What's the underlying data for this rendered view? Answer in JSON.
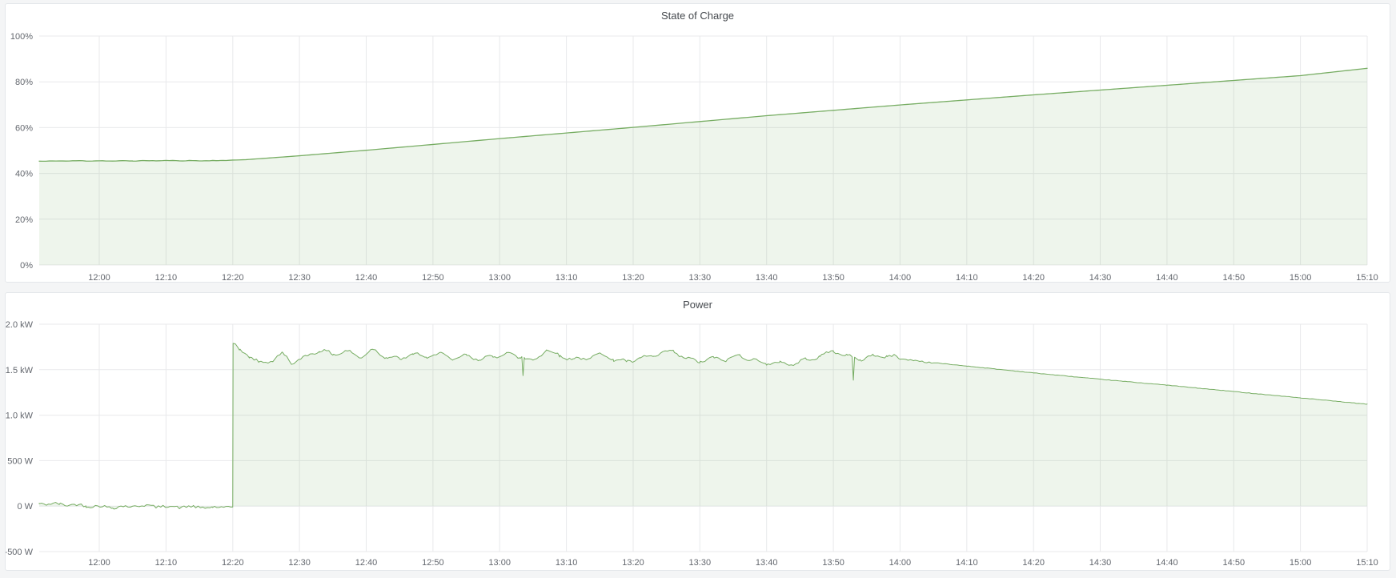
{
  "page": {
    "background": "#f4f5f6",
    "panel_background": "#ffffff"
  },
  "colors": {
    "accent_green_line": "#77ad63",
    "area_fill": "rgba(126,178,109,0.13)",
    "grid": "#e8e9eb",
    "tick_text": "#63676e",
    "title_text": "#45494e",
    "panel_border": "#e4e7ea"
  },
  "panels": [
    {
      "title": "State of Charge"
    },
    {
      "title": "Power"
    }
  ],
  "chart_data": [
    {
      "type": "area",
      "title": "State of Charge",
      "xlabel": "",
      "ylabel": "",
      "unit": "%",
      "legend": "none",
      "grid": true,
      "seed": 11,
      "step": 0.5,
      "line_width": 1.3,
      "line_color": "#77ad63",
      "fill_color": "rgba(126,178,109,0.13)",
      "x_range": [
        "11:51",
        "15:10"
      ],
      "ylim": [
        0,
        100
      ],
      "y_ticks": [
        {
          "v": 0,
          "label": "0%"
        },
        {
          "v": 20,
          "label": "20%"
        },
        {
          "v": 40,
          "label": "40%"
        },
        {
          "v": 60,
          "label": "60%"
        },
        {
          "v": 80,
          "label": "80%"
        },
        {
          "v": 100,
          "label": "100%"
        }
      ],
      "x_ticks": [
        "12:00",
        "12:10",
        "12:20",
        "12:30",
        "12:40",
        "12:50",
        "13:00",
        "13:10",
        "13:20",
        "13:30",
        "13:40",
        "13:50",
        "14:00",
        "14:10",
        "14:20",
        "14:30",
        "14:40",
        "14:50",
        "15:00",
        "15:10"
      ],
      "noise_zones": [
        {
          "from": "11:51",
          "to": "12:20",
          "jitter": 0.08,
          "wobble": 0.1
        }
      ],
      "spikes": [],
      "series": [
        {
          "name": "State of Charge",
          "breakpoints": [
            [
              "11:51",
              45.4
            ],
            [
              "12:05",
              45.5
            ],
            [
              "12:18",
              45.6
            ],
            [
              "12:22",
              46.0
            ],
            [
              "12:30",
              47.7
            ],
            [
              "12:40",
              50.1
            ],
            [
              "13:00",
              55.2
            ],
            [
              "13:20",
              60.1
            ],
            [
              "13:40",
              65.2
            ],
            [
              "14:00",
              69.9
            ],
            [
              "14:20",
              74.3
            ],
            [
              "14:40",
              78.5
            ],
            [
              "15:00",
              82.7
            ],
            [
              "15:10",
              85.9
            ]
          ]
        }
      ]
    },
    {
      "type": "area",
      "title": "Power",
      "xlabel": "",
      "ylabel": "",
      "unit": "W",
      "legend": "none",
      "grid": true,
      "seed": 42,
      "step": 0.35,
      "line_width": 1,
      "line_color": "#77ad63",
      "fill_color": "rgba(126,178,109,0.13)",
      "x_range": [
        "11:51",
        "15:10"
      ],
      "ylim": [
        -500,
        2000
      ],
      "y_ticks": [
        {
          "v": -500,
          "label": "-500 W"
        },
        {
          "v": 0,
          "label": "0 W"
        },
        {
          "v": 500,
          "label": "500 W"
        },
        {
          "v": 1000,
          "label": "1.0 kW"
        },
        {
          "v": 1500,
          "label": "1.5 kW"
        },
        {
          "v": 2000,
          "label": "2.0 kW"
        }
      ],
      "x_ticks": [
        "12:00",
        "12:10",
        "12:20",
        "12:30",
        "12:40",
        "12:50",
        "13:00",
        "13:10",
        "13:20",
        "13:30",
        "13:40",
        "13:50",
        "14:00",
        "14:10",
        "14:20",
        "14:30",
        "14:40",
        "14:50",
        "15:00",
        "15:10"
      ],
      "noise_zones": [
        {
          "from": "11:51",
          "to": "12:19:57",
          "jitter": 15,
          "wobble": 13
        },
        {
          "from": "12:20:06",
          "to": "13:59:30",
          "jitter": 13,
          "wobble": 26
        },
        {
          "from": "13:59:30",
          "to": "14:06",
          "jitter": 7,
          "wobble": 5
        },
        {
          "from": "14:06",
          "to": "15:10",
          "jitter": 2.5,
          "wobble": 0
        }
      ],
      "spikes": [
        {
          "t": "13:03:30",
          "v": 1435
        },
        {
          "t": "13:53:00",
          "v": 1385
        }
      ],
      "series": [
        {
          "name": "Power",
          "breakpoints": [
            [
              "11:51",
              35
            ],
            [
              "11:54",
              20
            ],
            [
              "11:58",
              0
            ],
            [
              "12:02",
              -8
            ],
            [
              "12:06",
              5
            ],
            [
              "12:10",
              -12
            ],
            [
              "12:14",
              -5
            ],
            [
              "12:17",
              -15
            ],
            [
              "12:20:00",
              -10
            ],
            [
              "12:20:03",
              1790
            ],
            [
              "12:21",
              1705
            ],
            [
              "12:22:30",
              1645
            ],
            [
              "12:24",
              1565
            ],
            [
              "12:26",
              1615
            ],
            [
              "12:27:30",
              1685
            ],
            [
              "12:29",
              1580
            ],
            [
              "12:31",
              1645
            ],
            [
              "12:33",
              1705
            ],
            [
              "12:35",
              1660
            ],
            [
              "12:37",
              1705
            ],
            [
              "12:39",
              1650
            ],
            [
              "12:41",
              1725
            ],
            [
              "12:43",
              1645
            ],
            [
              "12:45",
              1605
            ],
            [
              "12:47",
              1665
            ],
            [
              "12:49",
              1635
            ],
            [
              "12:51",
              1690
            ],
            [
              "12:53",
              1625
            ],
            [
              "12:55",
              1655
            ],
            [
              "12:57",
              1605
            ],
            [
              "12:59",
              1635
            ],
            [
              "13:01",
              1675
            ],
            [
              "13:03",
              1650
            ],
            [
              "13:05",
              1605
            ],
            [
              "13:07",
              1725
            ],
            [
              "13:09",
              1645
            ],
            [
              "13:11",
              1605
            ],
            [
              "13:13",
              1615
            ],
            [
              "13:15",
              1685
            ],
            [
              "13:17",
              1625
            ],
            [
              "13:19",
              1595
            ],
            [
              "13:21",
              1615
            ],
            [
              "13:23",
              1645
            ],
            [
              "13:26",
              1705
            ],
            [
              "13:28",
              1625
            ],
            [
              "13:30",
              1605
            ],
            [
              "13:32",
              1625
            ],
            [
              "13:34",
              1605
            ],
            [
              "13:36",
              1645
            ],
            [
              "13:38",
              1605
            ],
            [
              "13:40",
              1575
            ],
            [
              "13:42",
              1585
            ],
            [
              "13:44",
              1565
            ],
            [
              "13:46",
              1605
            ],
            [
              "13:48",
              1635
            ],
            [
              "13:50",
              1705
            ],
            [
              "13:52",
              1655
            ],
            [
              "13:54",
              1625
            ],
            [
              "13:56",
              1655
            ],
            [
              "13:58",
              1645
            ],
            [
              "14:00",
              1620
            ],
            [
              "14:02",
              1600
            ],
            [
              "14:06",
              1570
            ],
            [
              "14:10",
              1540
            ],
            [
              "14:20",
              1465
            ],
            [
              "14:30",
              1395
            ],
            [
              "14:40",
              1330
            ],
            [
              "14:50",
              1260
            ],
            [
              "15:00",
              1190
            ],
            [
              "15:10",
              1120
            ]
          ]
        }
      ]
    }
  ]
}
